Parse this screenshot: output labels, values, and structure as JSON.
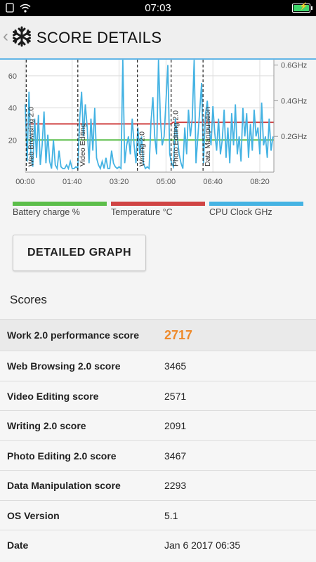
{
  "status_bar": {
    "time": "07:03",
    "battery_icon": "charging-battery-icon",
    "signal_icons": [
      "sim-signal-icon",
      "wifi-icon"
    ]
  },
  "header": {
    "title": "SCORE DETAILS",
    "back_icon": "chevron-left-icon",
    "logo_icon": "snowflake-icon",
    "accent_color": "#63b6e6"
  },
  "chart_data": {
    "type": "line",
    "x_tick_labels": [
      "00:00",
      "01:40",
      "03:20",
      "05:00",
      "06:40",
      "08:20"
    ],
    "y_left_tick_labels": [
      "20",
      "40",
      "60"
    ],
    "y_right_tick_labels": [
      "0.2GHz",
      "0.4GHz",
      "0.6GHz"
    ],
    "x_range_seconds": [
      0,
      530
    ],
    "y_left_range": [
      0,
      70
    ],
    "y_right_range_ghz": [
      0,
      0.63
    ],
    "grid": true,
    "workload_markers": [
      {
        "label": "Web Browsing 2.0",
        "t": 2
      },
      {
        "label": "Video Editing",
        "t": 112
      },
      {
        "label": "Writing 2.0",
        "t": 239
      },
      {
        "label": "Photo Editing 2.0",
        "t": 311
      },
      {
        "label": "Data Manipulation",
        "t": 379
      }
    ],
    "series": [
      {
        "name": "Battery charge %",
        "color": "#5cbe4a",
        "axis": "left",
        "x": [
          0,
          530
        ],
        "values": [
          20,
          20
        ]
      },
      {
        "name": "Temperature °C",
        "color": "#d04444",
        "axis": "left",
        "x": [
          0,
          311,
          315,
          530
        ],
        "values": [
          30,
          30,
          31,
          31
        ]
      },
      {
        "name": "CPU Clock GHz",
        "color": "#45b3e3",
        "axis": "right",
        "x": [
          0,
          4,
          8,
          12,
          16,
          20,
          24,
          28,
          32,
          36,
          40,
          44,
          48,
          52,
          56,
          60,
          64,
          68,
          72,
          76,
          80,
          84,
          88,
          92,
          96,
          100,
          104,
          108,
          112,
          116,
          120,
          124,
          128,
          132,
          136,
          140,
          144,
          148,
          152,
          156,
          160,
          164,
          168,
          172,
          176,
          180,
          184,
          188,
          192,
          196,
          200,
          204,
          208,
          212,
          216,
          220,
          224,
          228,
          232,
          236,
          240,
          244,
          248,
          252,
          256,
          260,
          264,
          268,
          272,
          276,
          280,
          284,
          288,
          292,
          296,
          300,
          304,
          308,
          312,
          316,
          320,
          324,
          328,
          332,
          336,
          340,
          344,
          348,
          352,
          356,
          360,
          364,
          368,
          372,
          376,
          380,
          384,
          388,
          392,
          396,
          400,
          404,
          408,
          412,
          416,
          420,
          424,
          428,
          432,
          436,
          440,
          444,
          448,
          452,
          456,
          460,
          464,
          468,
          472,
          476,
          480,
          484,
          488,
          492,
          496,
          500,
          504,
          508,
          512,
          516,
          520,
          524,
          528
        ],
        "values": [
          0.38,
          0.06,
          0.45,
          0.1,
          0.03,
          0.3,
          0.08,
          0.32,
          0.04,
          0.15,
          0.34,
          0.05,
          0.21,
          0.06,
          0.02,
          0.18,
          0.04,
          0.02,
          0.12,
          0.03,
          0.02,
          0.02,
          0.04,
          0.02,
          0.06,
          0.02,
          0.02,
          0.03,
          0.02,
          0.3,
          0.45,
          0.2,
          0.38,
          0.25,
          0.05,
          0.3,
          0.12,
          0.36,
          0.08,
          0.04,
          0.02,
          0.06,
          0.02,
          0.08,
          0.02,
          0.02,
          0.12,
          0.05,
          0.03,
          0.02,
          0.03,
          0.02,
          0.63,
          0.05,
          0.15,
          0.2,
          0.1,
          0.3,
          0.15,
          0.05,
          0.25,
          0.1,
          0.2,
          0.05,
          0.02,
          0.03,
          0.02,
          0.28,
          0.42,
          0.2,
          0.1,
          0.63,
          0.3,
          0.15,
          0.2,
          0.4,
          0.6,
          0.1,
          0.05,
          0.03,
          0.3,
          0.2,
          0.1,
          0.05,
          0.02,
          0.25,
          0.1,
          0.35,
          0.2,
          0.3,
          0.63,
          0.05,
          0.2,
          0.35,
          0.5,
          0.05,
          0.32,
          0.4,
          0.25,
          0.15,
          0.37,
          0.22,
          0.12,
          0.3,
          0.1,
          0.18,
          0.35,
          0.08,
          0.25,
          0.05,
          0.33,
          0.15,
          0.38,
          0.1,
          0.2,
          0.06,
          0.36,
          0.2,
          0.33,
          0.08,
          0.27,
          0.12,
          0.35,
          0.2,
          0.25,
          0.1,
          0.39,
          0.15,
          0.2,
          0.08,
          0.3,
          0.12,
          0.2
        ]
      }
    ]
  },
  "legend": [
    {
      "label": "Battery charge %",
      "color": "#5cbe4a"
    },
    {
      "label": "Temperature °C",
      "color": "#d04444"
    },
    {
      "label": "CPU Clock GHz",
      "color": "#45b3e3"
    }
  ],
  "detailed_graph_button": "DETAILED GRAPH",
  "scores_heading": "Scores",
  "scores": [
    {
      "label": "Work 2.0 performance score",
      "value": "2717"
    },
    {
      "label": "Web Browsing 2.0 score",
      "value": "3465"
    },
    {
      "label": "Video Editing score",
      "value": "2571"
    },
    {
      "label": "Writing 2.0 score",
      "value": "2091"
    },
    {
      "label": "Photo Editing 2.0 score",
      "value": "3467"
    },
    {
      "label": "Data Manipulation score",
      "value": "2293"
    },
    {
      "label": "OS Version",
      "value": "5.1"
    },
    {
      "label": "Date",
      "value": "Jan 6 2017 06:35"
    }
  ],
  "highlight_color": "#ee8a2b"
}
